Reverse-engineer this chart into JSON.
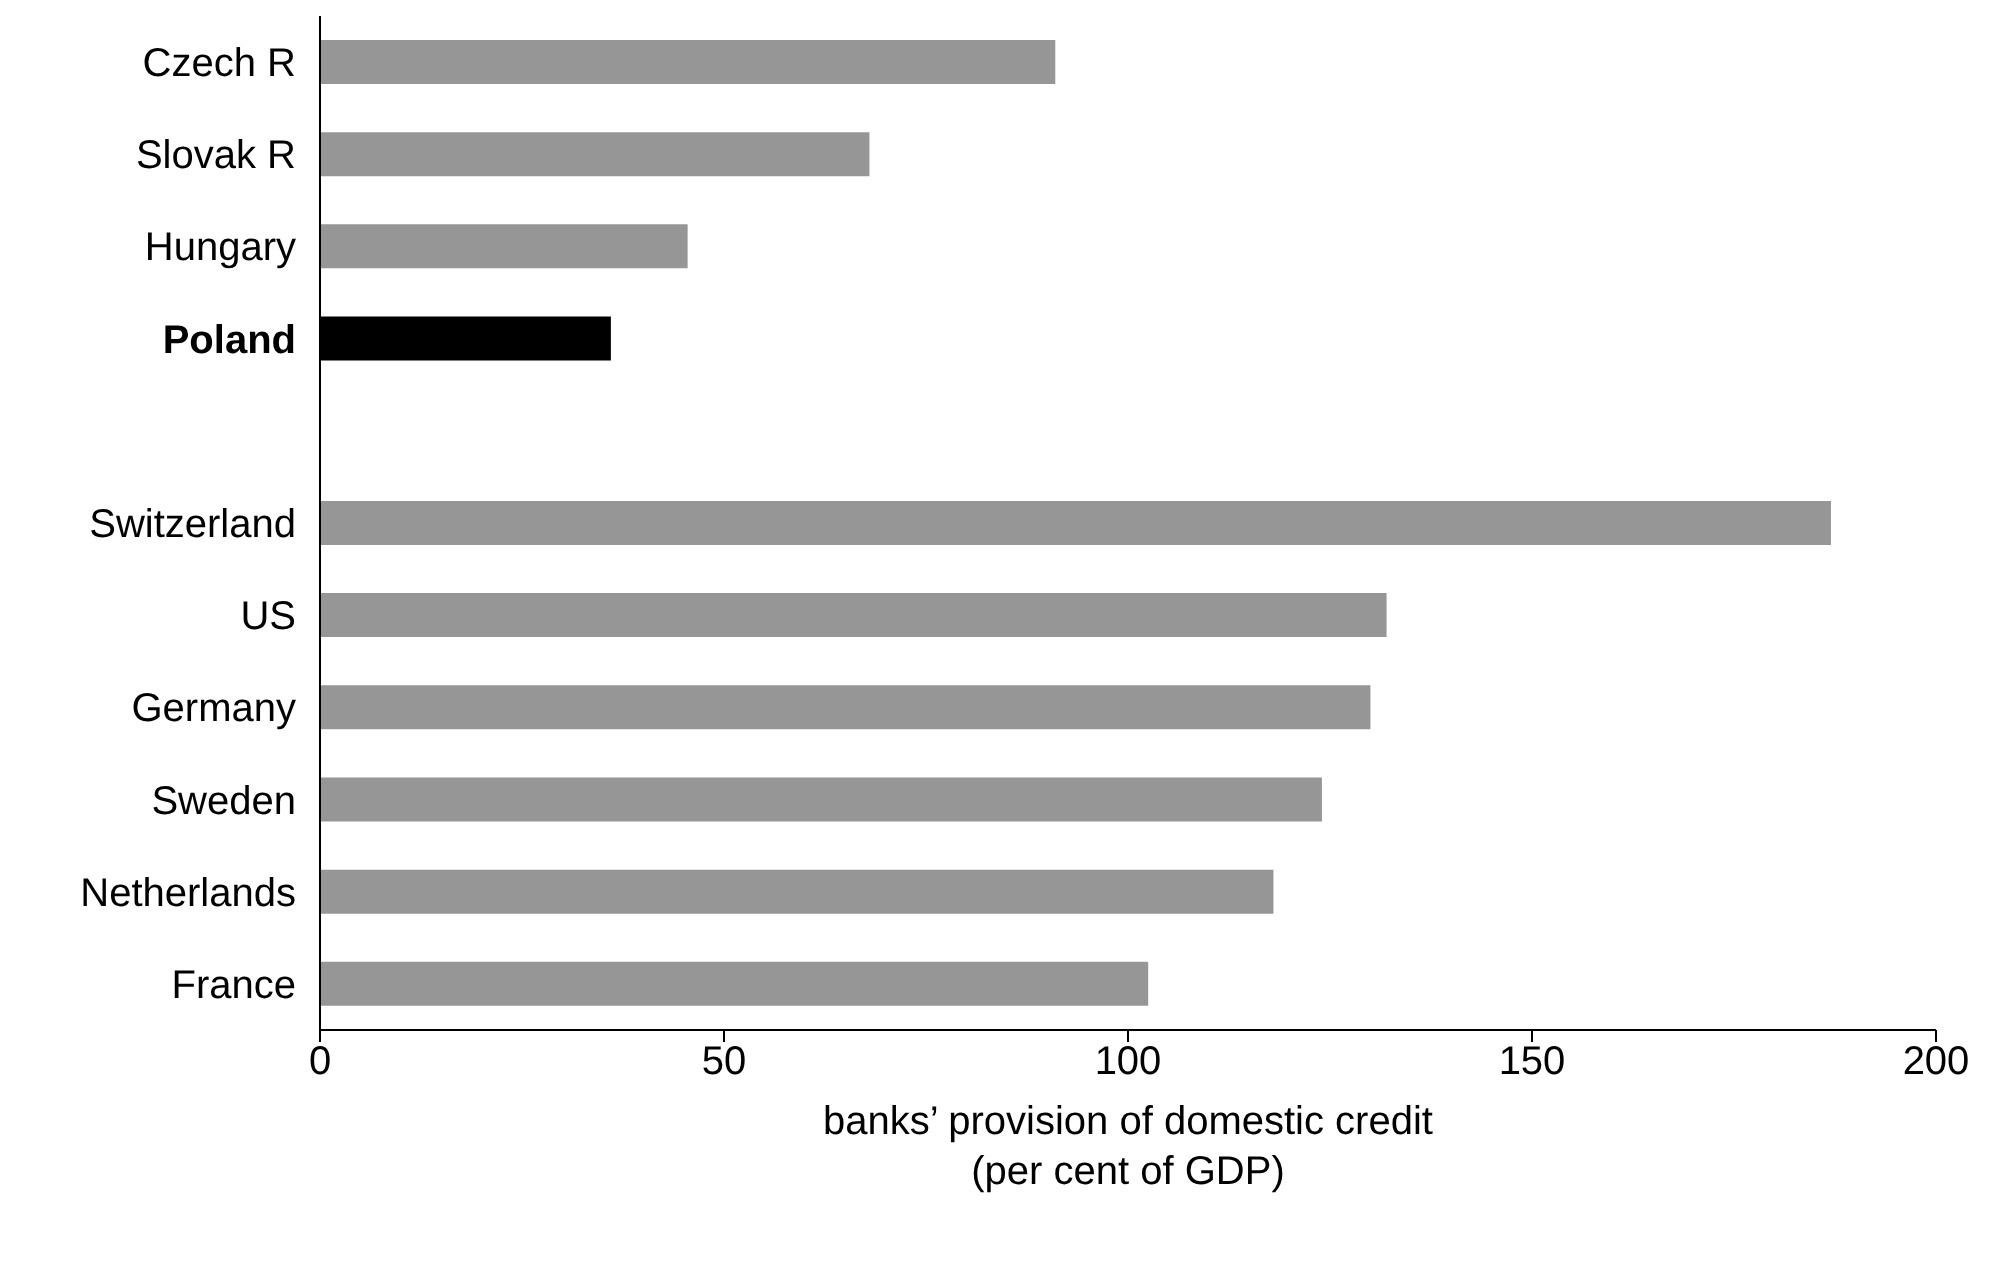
{
  "chart_data": {
    "type": "bar",
    "orientation": "horizontal",
    "xlabel": "banks’ provision of domestic credit (per cent of GDP)",
    "categories": [
      "Czech R",
      "Slovak R",
      "Hungary",
      "Poland",
      null,
      "Switzerland",
      "US",
      "Germany",
      "Sweden",
      "Netherlands",
      "France"
    ],
    "values": [
      91,
      68,
      45.5,
      36,
      null,
      187,
      132,
      130,
      124,
      118,
      102.5
    ],
    "colors": [
      "#969696",
      "#969696",
      "#969696",
      "#000000",
      "#969696",
      "#969696",
      "#969696",
      "#969696",
      "#969696",
      "#969696",
      "#969696"
    ],
    "xlim": [
      0,
      200
    ],
    "xticks": [
      0,
      50,
      100,
      150,
      200
    ],
    "grid": false,
    "legend": false
  }
}
